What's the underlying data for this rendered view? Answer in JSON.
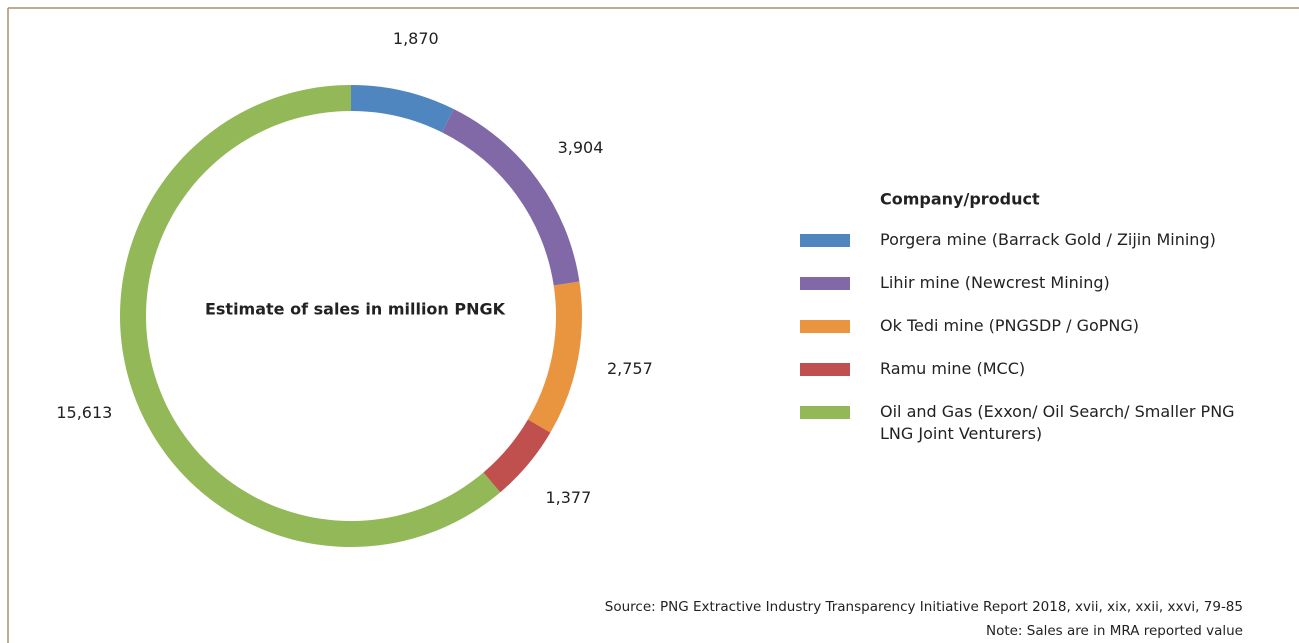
{
  "chart_data": {
    "type": "donut",
    "title": "Estimate of sales in million PNGK",
    "legend_title": "Company/product",
    "categories": [
      "Porgera mine (Barrack Gold / Zijin Mining)",
      "Lihir mine (Newcrest Mining)",
      "Ok Tedi mine (PNGSDP / GoPNG)",
      "Ramu mine (MCC)",
      "Oil and Gas (Exxon/ Oil Search/ Smaller PNG LNG Joint Venturers)"
    ],
    "values": [
      1870,
      3904,
      2757,
      1377,
      15613
    ],
    "value_labels": [
      "1,870",
      "3,904",
      "2,757",
      "1,377",
      "15,613"
    ],
    "colors": [
      "#4f86c0",
      "#8169a8",
      "#e9953f",
      "#c0504d",
      "#93b858"
    ],
    "legend": "right",
    "source": "Source: PNG Extractive Industry Transparency Initiative Report 2018, xvii, xix, xxii, xxvi, 79-85",
    "note": "Note: Sales are in MRA reported value"
  }
}
